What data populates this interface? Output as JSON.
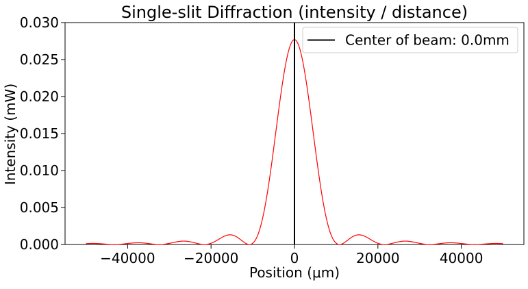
{
  "chart_data": {
    "type": "line",
    "title": "Single-slit Diffraction (intensity / distance)",
    "xlabel": "Position (μm)",
    "ylabel": "Intensity (mW)",
    "xlim": [
      -55000,
      55000
    ],
    "ylim": [
      0,
      0.03
    ],
    "xticks": [
      -40000,
      -20000,
      0,
      20000,
      40000
    ],
    "xtick_labels": [
      "−40000",
      "−20000",
      "0",
      "20000",
      "40000"
    ],
    "yticks": [
      0,
      0.005,
      0.01,
      0.015,
      0.02,
      0.025,
      0.03
    ],
    "ytick_labels": [
      "0.000",
      "0.005",
      "0.010",
      "0.015",
      "0.020",
      "0.025",
      "0.030"
    ],
    "grid": false,
    "legend_position": "top-right",
    "series": [
      {
        "kind": "curve",
        "color": "#ff0000",
        "peak_position": 0,
        "peak_value": 0.0277,
        "first_zero_position": 10800,
        "x_range": [
          -50000,
          50000
        ],
        "key_points": [
          {
            "x": -50000,
            "y": 0.00011
          },
          {
            "x": -37500,
            "y": 0.00024
          },
          {
            "x": -26700,
            "y": 0.0005
          },
          {
            "x": -15700,
            "y": 0.00132
          },
          {
            "x": -10800,
            "y": 0.0
          },
          {
            "x": 0,
            "y": 0.0277
          },
          {
            "x": 10800,
            "y": 0.0
          },
          {
            "x": 15700,
            "y": 0.00132
          },
          {
            "x": 26700,
            "y": 0.0005
          },
          {
            "x": 37500,
            "y": 0.00024
          },
          {
            "x": 50000,
            "y": 0.00011
          }
        ]
      },
      {
        "name": "Center of beam: 0.0mm",
        "kind": "vertical-line",
        "color": "#000000",
        "x": 0
      }
    ]
  }
}
